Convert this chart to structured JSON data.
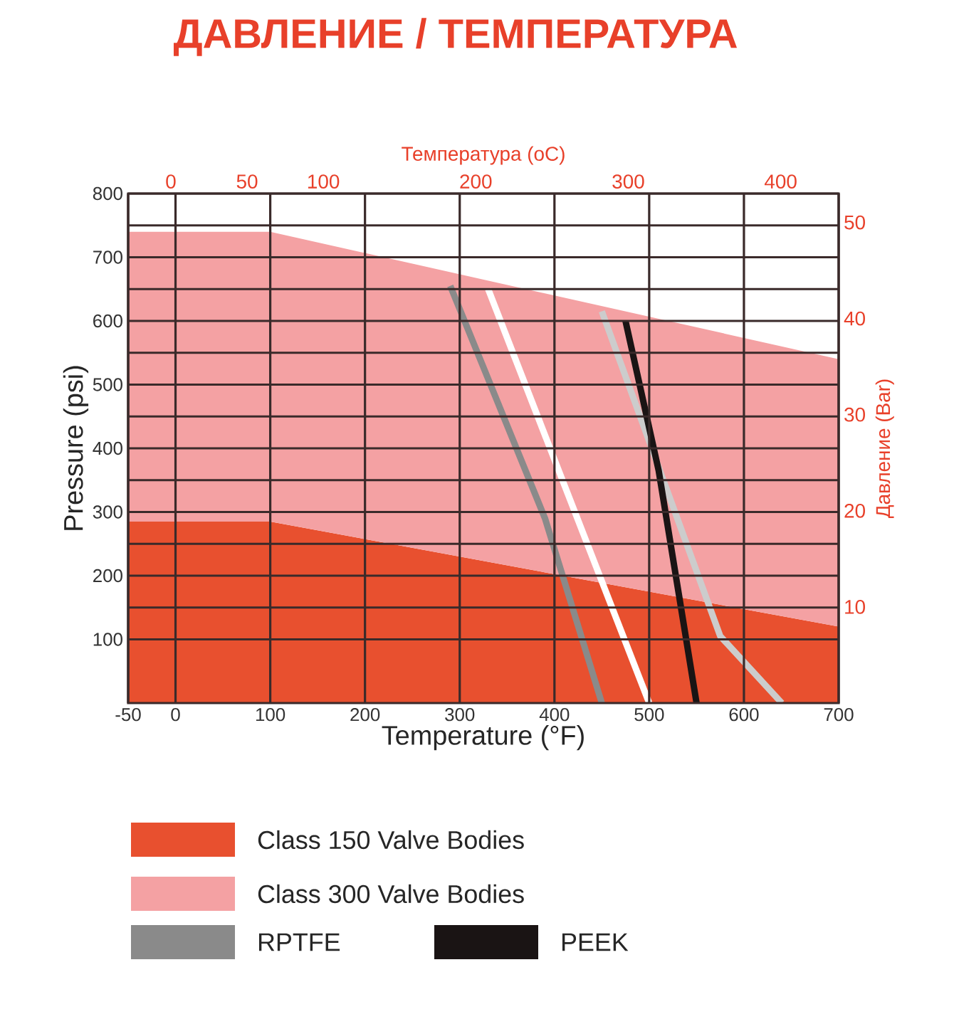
{
  "chart_data": {
    "type": "line",
    "title": "ДАВЛЕНИЕ / ТЕМПЕРАТУРА",
    "xlabel": "Temperature (°F)",
    "ylabel": "Pressure (psi)",
    "x2label": "Температура (oC)",
    "y2label": "Давление (Bar)",
    "xlim": [
      -50,
      700
    ],
    "xticks": [
      -50,
      0,
      100,
      200,
      300,
      400,
      500,
      600,
      700
    ],
    "ylim": [
      0,
      800
    ],
    "yticks": [
      100,
      200,
      300,
      400,
      500,
      600,
      700,
      800
    ],
    "x2lim": [
      -28,
      438
    ],
    "x2ticks": [
      0,
      50,
      100,
      200,
      300,
      400
    ],
    "y2lim": [
      0,
      53
    ],
    "y2ticks": [
      10,
      20,
      30,
      40,
      50
    ],
    "grid": true,
    "legend": "bottom",
    "line_style": "solid",
    "series": [
      {
        "name": "Class 150 Valve Bodies",
        "type": "area",
        "color": "#e8502f",
        "x": [
          -50,
          100,
          700
        ],
        "values": [
          285,
          285,
          120
        ]
      },
      {
        "name": "Class 300 Valve Bodies",
        "type": "area",
        "color": "#f4a1a3",
        "x": [
          -50,
          100,
          700
        ],
        "values": [
          740,
          740,
          540
        ]
      },
      {
        "name": "RPTFE",
        "color": "#8a8a8a",
        "x": [
          290,
          390,
          450
        ],
        "values": [
          655,
          290,
          0
        ]
      },
      {
        "color": "#ffffff",
        "x": [
          330,
          500
        ],
        "values": [
          650,
          0
        ]
      },
      {
        "color": "#cccccc",
        "x": [
          450,
          575,
          640
        ],
        "values": [
          615,
          105,
          0
        ]
      },
      {
        "name": "PEEK",
        "color": "#1a1414",
        "x": [
          475,
          510,
          550
        ],
        "values": [
          600,
          365,
          0
        ]
      }
    ]
  }
}
